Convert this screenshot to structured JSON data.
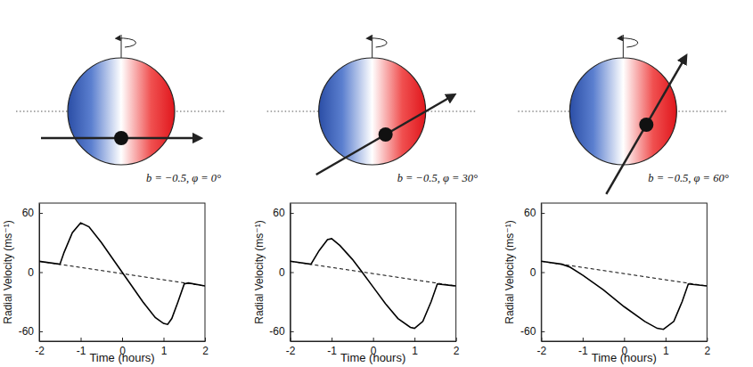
{
  "chart_data": [
    {
      "type": "line",
      "x_label": "Time (hours)",
      "y_label": "Radial Velocity (ms⁻¹)",
      "annotation": "b = −0.5, φ = 0°",
      "planet_path": {
        "b": -0.5,
        "phi": 0
      },
      "xlim": [
        -2,
        2
      ],
      "xticks": [
        -2,
        -1,
        0,
        1,
        2
      ],
      "ylim": [
        -70,
        70
      ],
      "yticks": [
        -60,
        0,
        60
      ],
      "series": [
        {
          "color": "#000000",
          "line_style": "solid",
          "x": [
            -2,
            -1.5,
            -1.4,
            -1.2,
            -1.0,
            -0.8,
            -0.5,
            -0.2,
            0,
            0.2,
            0.5,
            0.8,
            1.0,
            1.1,
            1.2,
            1.35,
            1.5,
            1.6,
            2
          ],
          "values": [
            11,
            8,
            20,
            40,
            50,
            46,
            30,
            12,
            0,
            -12,
            -30,
            -46,
            -52,
            -53,
            -47,
            -30,
            -12,
            -11,
            -14
          ]
        },
        {
          "color": "#000000",
          "line_style": "dashed",
          "x": [
            -2,
            2
          ],
          "values": [
            11,
            -14
          ]
        }
      ]
    },
    {
      "type": "line",
      "x_label": "Time (hours)",
      "y_label": "Radial Velocity (ms⁻¹)",
      "annotation": "b = −0.5, φ = 30°",
      "planet_path": {
        "b": -0.5,
        "phi": 30
      },
      "xlim": [
        -2,
        2
      ],
      "xticks": [
        -2,
        -1,
        0,
        1,
        2
      ],
      "ylim": [
        -70,
        70
      ],
      "yticks": [
        -60,
        0,
        60
      ],
      "series": [
        {
          "color": "#000000",
          "line_style": "solid",
          "x": [
            -2,
            -1.5,
            -1.3,
            -1.1,
            -1.0,
            -0.8,
            -0.5,
            -0.3,
            0,
            0.3,
            0.6,
            0.9,
            1.0,
            1.2,
            1.4,
            1.55,
            2
          ],
          "values": [
            11,
            8,
            22,
            33,
            34,
            27,
            13,
            2,
            -15,
            -32,
            -47,
            -56,
            -57,
            -50,
            -30,
            -12,
            -14
          ]
        },
        {
          "color": "#000000",
          "line_style": "dashed",
          "x": [
            -2,
            2
          ],
          "values": [
            11,
            -14
          ]
        }
      ]
    },
    {
      "type": "line",
      "x_label": "Time (hours)",
      "y_label": "Radial Velocity (ms⁻¹)",
      "annotation": "b = −0.5, φ = 60°",
      "planet_path": {
        "b": -0.5,
        "phi": 60
      },
      "xlim": [
        -2,
        2
      ],
      "xticks": [
        -2,
        -1,
        0,
        1,
        2
      ],
      "ylim": [
        -70,
        70
      ],
      "yticks": [
        -60,
        0,
        60
      ],
      "series": [
        {
          "color": "#000000",
          "line_style": "solid",
          "x": [
            -2,
            -1.5,
            -1.3,
            -1.0,
            -0.5,
            0,
            0.5,
            0.8,
            0.95,
            1.2,
            1.4,
            1.55,
            2
          ],
          "values": [
            11,
            8,
            5,
            -3,
            -18,
            -35,
            -50,
            -57,
            -58,
            -50,
            -30,
            -12,
            -14
          ]
        },
        {
          "color": "#000000",
          "line_style": "dashed",
          "x": [
            -2,
            2
          ],
          "values": [
            11,
            -14
          ]
        }
      ]
    }
  ]
}
